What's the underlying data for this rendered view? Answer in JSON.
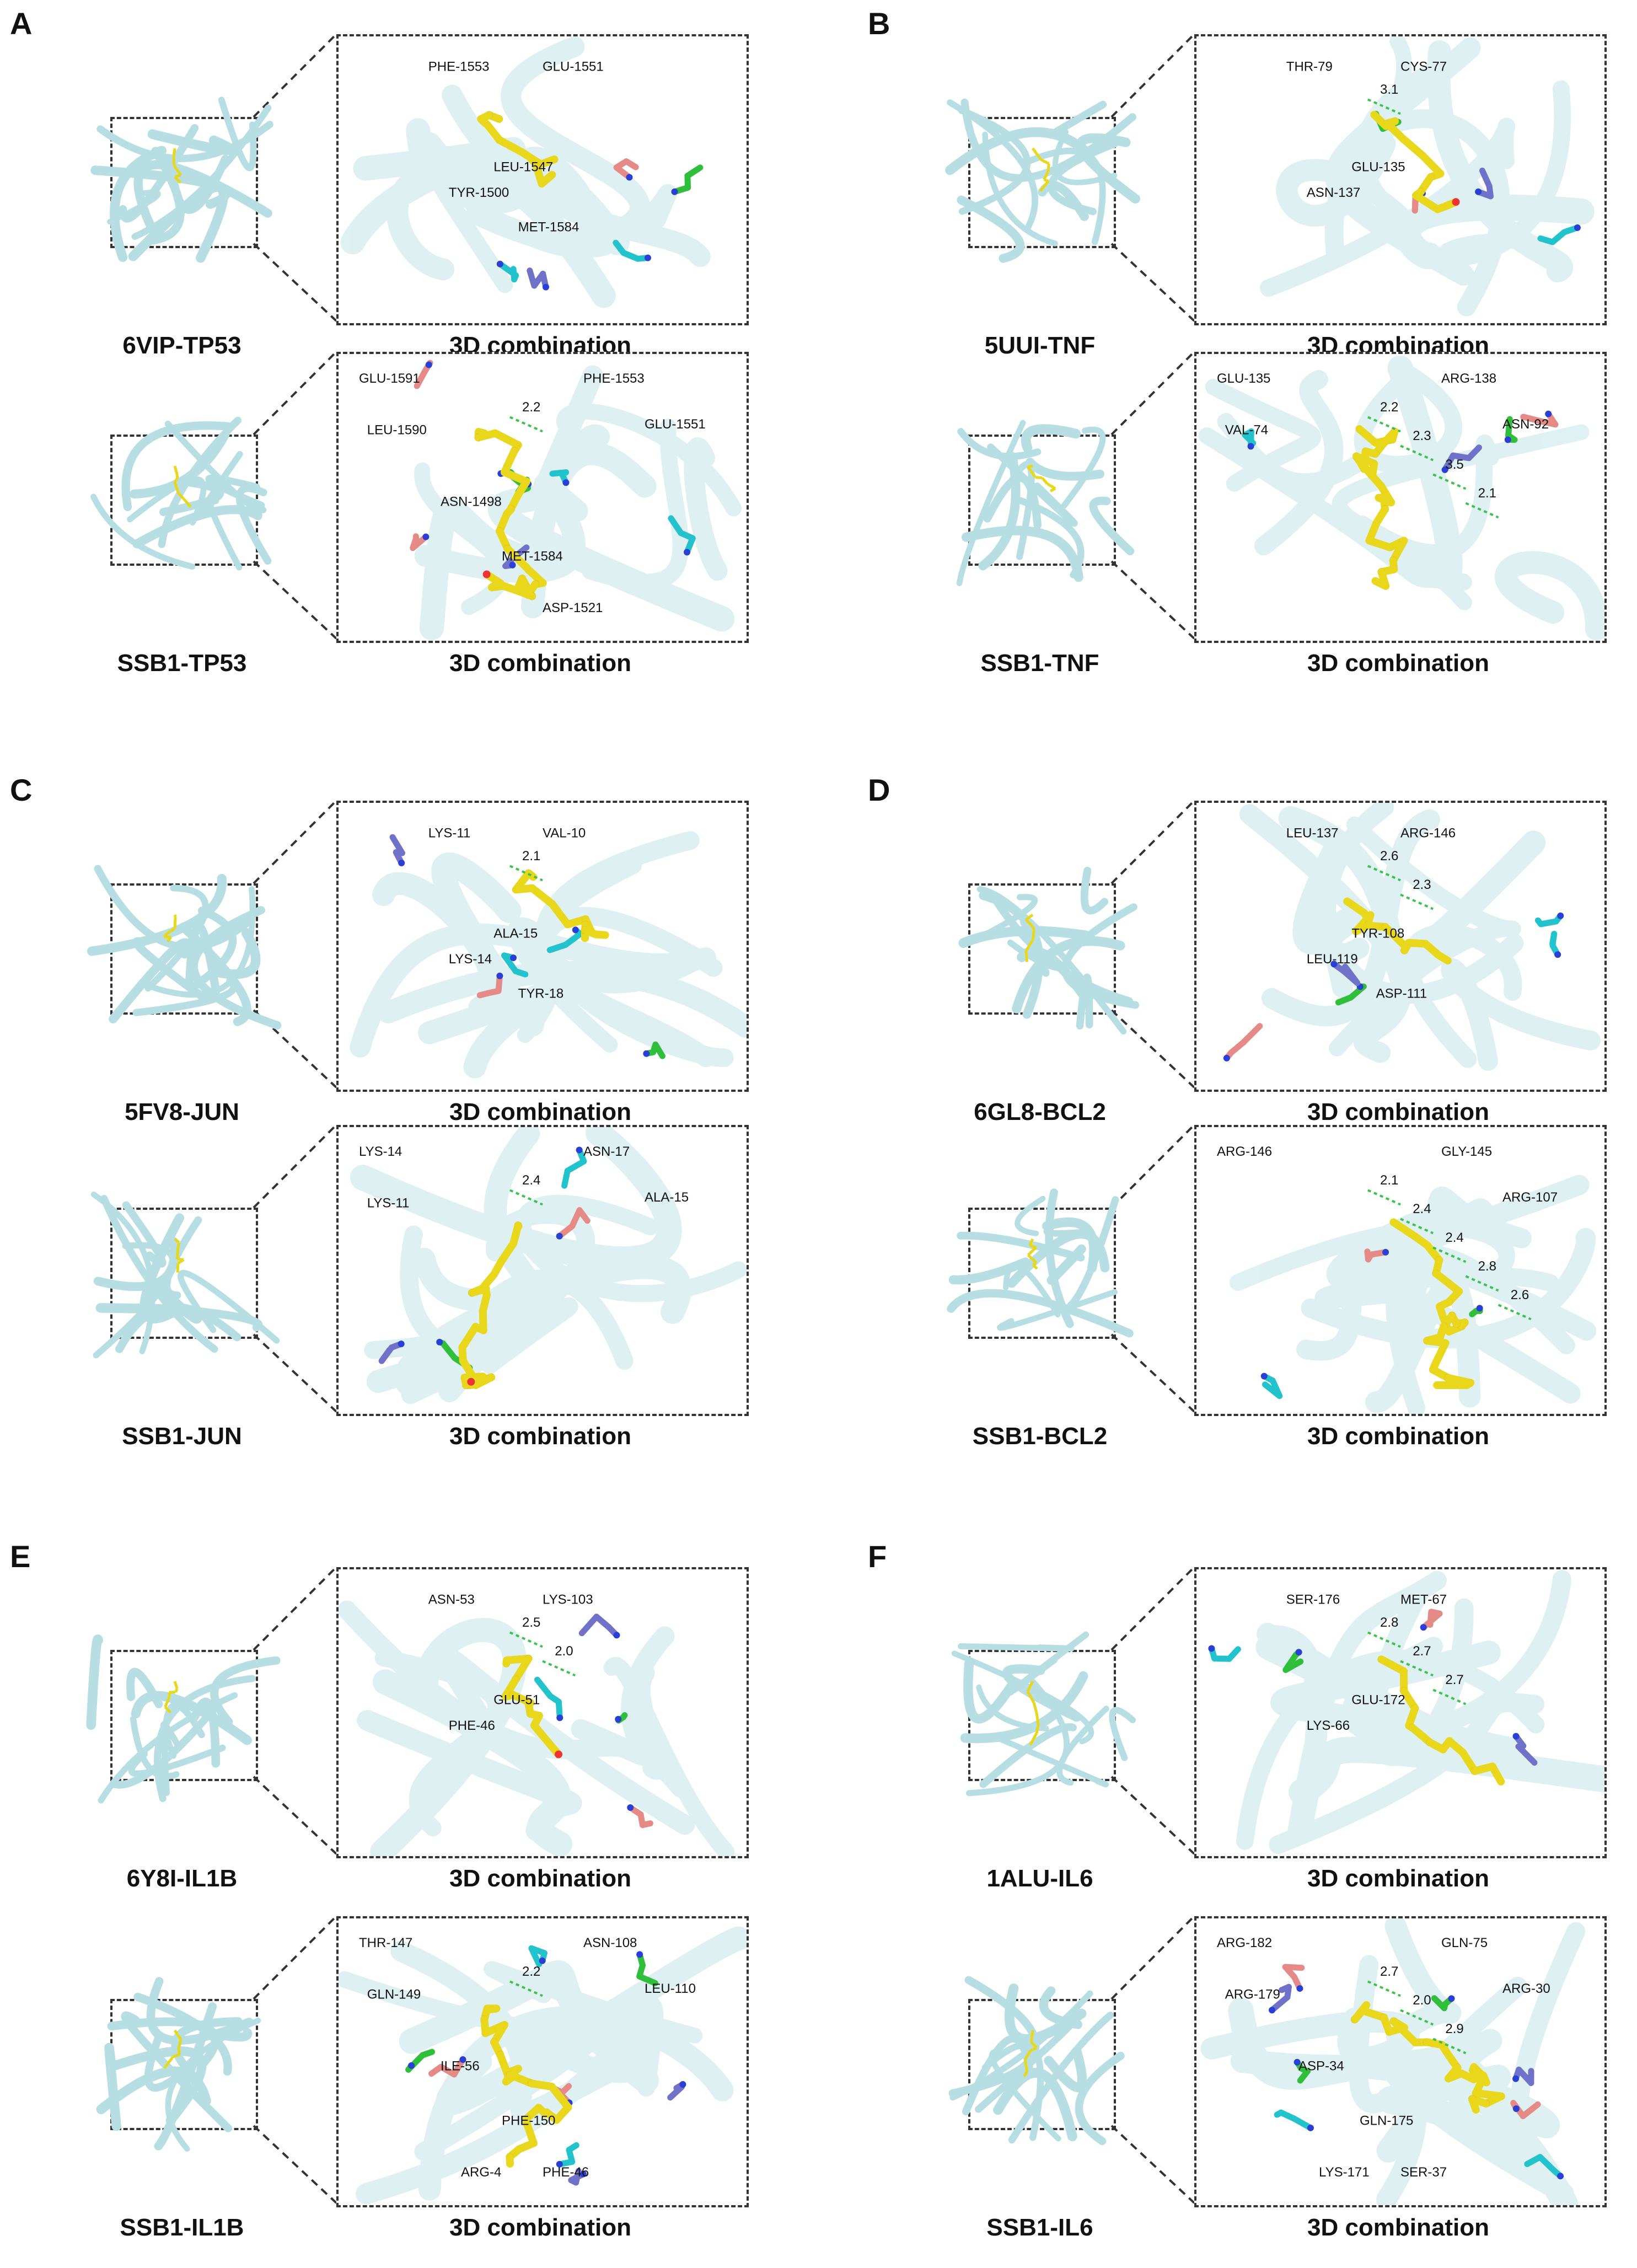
{
  "panels": [
    {
      "letter": "A",
      "rows": [
        {
          "protein_label": "6VIP-TP53",
          "zoom_title": "3D combination",
          "residues": [
            "PHE-1553",
            "GLU-1551",
            "LEU-1547",
            "TYR-1500",
            "MET-1584"
          ],
          "distances": []
        },
        {
          "protein_label": "SSB1-TP53",
          "zoom_title": "3D combination",
          "residues": [
            "GLU-1591",
            "PHE-1553",
            "GLU-1551",
            "LEU-1590",
            "ASN-1498",
            "MET-1584",
            "ASP-1521"
          ],
          "distances": [
            "2.2"
          ]
        }
      ]
    },
    {
      "letter": "B",
      "rows": [
        {
          "protein_label": "5UUI-TNF",
          "zoom_title": "3D combination",
          "residues": [
            "THR-79",
            "CYS-77",
            "GLU-135",
            "ASN-137"
          ],
          "distances": [
            "3.1"
          ]
        },
        {
          "protein_label": "SSB1-TNF",
          "zoom_title": "3D combination",
          "residues": [
            "GLU-135",
            "ARG-138",
            "ASN-92",
            "VAL-74"
          ],
          "distances": [
            "2.2",
            "2.3",
            "3.5",
            "2.1"
          ]
        }
      ]
    },
    {
      "letter": "C",
      "rows": [
        {
          "protein_label": "5FV8-JUN",
          "zoom_title": "3D combination",
          "residues": [
            "LYS-11",
            "VAL-10",
            "ALA-15",
            "LYS-14",
            "TYR-18"
          ],
          "distances": [
            "2.1"
          ]
        },
        {
          "protein_label": "SSB1-JUN",
          "zoom_title": "3D combination",
          "residues": [
            "LYS-14",
            "ASN-17",
            "ALA-15",
            "LYS-11"
          ],
          "distances": [
            "2.4"
          ]
        }
      ]
    },
    {
      "letter": "D",
      "rows": [
        {
          "protein_label": "6GL8-BCL2",
          "zoom_title": "3D combination",
          "residues": [
            "LEU-137",
            "ARG-146",
            "TYR-108",
            "LEU-119",
            "ASP-111"
          ],
          "distances": [
            "2.6",
            "2.3"
          ]
        },
        {
          "protein_label": "SSB1-BCL2",
          "zoom_title": "3D combination",
          "residues": [
            "ARG-146",
            "GLY-145",
            "ARG-107"
          ],
          "distances": [
            "2.1",
            "2.4",
            "2.4",
            "2.8",
            "2.6"
          ]
        }
      ]
    },
    {
      "letter": "E",
      "rows": [
        {
          "protein_label": "6Y8I-IL1B",
          "zoom_title": "3D combination",
          "residues": [
            "ASN-53",
            "LYS-103",
            "GLU-51",
            "PHE-46"
          ],
          "distances": [
            "2.5",
            "2.0"
          ]
        },
        {
          "protein_label": "SSB1-IL1B",
          "zoom_title": "3D combination",
          "residues": [
            "THR-147",
            "ASN-108",
            "LEU-110",
            "GLN-149",
            "ILE-56",
            "PHE-150",
            "PHE-46",
            "ARG-4"
          ],
          "distances": [
            "2.2"
          ]
        }
      ]
    },
    {
      "letter": "F",
      "rows": [
        {
          "protein_label": "1ALU-IL6",
          "zoom_title": "3D combination",
          "residues": [
            "SER-176",
            "MET-67",
            "GLU-172",
            "LYS-66"
          ],
          "distances": [
            "2.8",
            "2.7",
            "2.7"
          ]
        },
        {
          "protein_label": "SSB1-IL6",
          "zoom_title": "3D combination",
          "residues": [
            "ARG-182",
            "GLN-75",
            "ARG-30",
            "ARG-179",
            "ASP-34",
            "GLN-175",
            "SER-37",
            "LYS-171"
          ],
          "distances": [
            "2.7",
            "2.0",
            "2.9"
          ]
        }
      ]
    }
  ],
  "colors": {
    "protein_ribbon": "#b7dfe3",
    "ligand": "#e8d71a",
    "residue_cyan": "#22c3cc",
    "residue_green": "#2fbf3a",
    "residue_salmon": "#e58a86",
    "residue_slate": "#6f72c8",
    "hbond": "#39c34a"
  }
}
